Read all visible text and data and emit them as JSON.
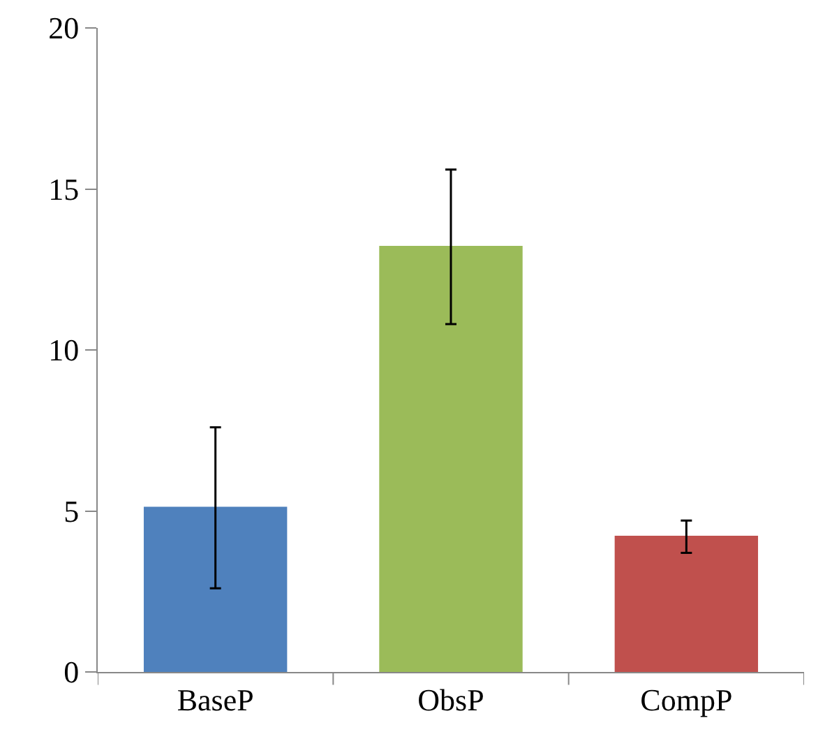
{
  "chart_data": {
    "type": "bar",
    "categories": [
      "BaseP",
      "ObsP",
      "CompP"
    ],
    "values": [
      5.1,
      13.2,
      4.2
    ],
    "errors": [
      2.5,
      2.4,
      0.5
    ],
    "colors": [
      "#4f81bd",
      "#9bbb59",
      "#c0504d"
    ],
    "ylim": [
      0,
      20
    ],
    "yticks": [
      0,
      5,
      10,
      15,
      20
    ],
    "grid": false
  }
}
